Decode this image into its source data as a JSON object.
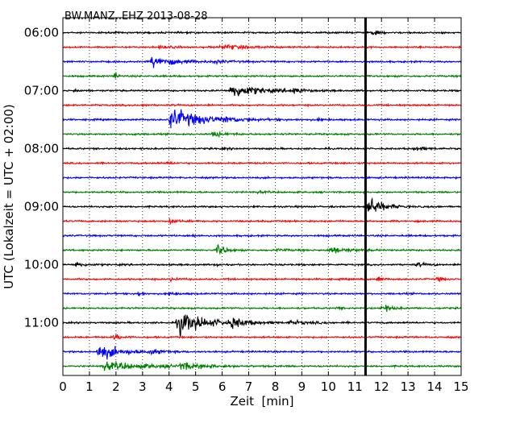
{
  "chart_data": {
    "type": "line",
    "title": "BW.MANZ..EHZ 2013-08-28",
    "xlabel": "Zeit  [min]",
    "ylabel": "UTC (Lokalzeit = UTC + 02:00)",
    "xlim": [
      0,
      15
    ],
    "x_ticks": [
      0,
      1,
      2,
      3,
      4,
      5,
      6,
      7,
      8,
      9,
      10,
      11,
      12,
      13,
      14,
      15
    ],
    "y_ticks": [
      "06:00",
      "07:00",
      "08:00",
      "09:00",
      "10:00",
      "11:00"
    ],
    "grid": "vertical dotted",
    "trace_colors": [
      "#000000",
      "#ff0000",
      "#0000ff",
      "#008000"
    ],
    "current_time_marker_min": 11.4,
    "traces": [
      {
        "start": "06:00",
        "events": [
          {
            "t": 11.6,
            "amp": 0.28,
            "dur": 0.5
          }
        ]
      },
      {
        "start": "06:15",
        "events": [
          {
            "t": 5.9,
            "amp": 0.35,
            "dur": 1.4
          },
          {
            "t": 3.6,
            "amp": 0.15,
            "dur": 1.0
          }
        ]
      },
      {
        "start": "06:30",
        "events": [
          {
            "t": 3.3,
            "amp": 0.65,
            "dur": 1.8
          },
          {
            "t": 5.6,
            "amp": 0.15,
            "dur": 1.0
          }
        ]
      },
      {
        "start": "06:45",
        "events": [
          {
            "t": 1.95,
            "amp": 0.75,
            "dur": 0.2
          }
        ]
      },
      {
        "start": "07:00",
        "events": [
          {
            "t": 0.45,
            "amp": 0.4,
            "dur": 0.15
          },
          {
            "t": 6.3,
            "amp": 0.9,
            "dur": 1.9
          },
          {
            "t": 8.6,
            "amp": 0.4,
            "dur": 0.7
          }
        ]
      },
      {
        "start": "07:15",
        "events": [
          {
            "t": 2.95,
            "amp": 0.6,
            "dur": 0.15
          }
        ]
      },
      {
        "start": "07:30",
        "events": [
          {
            "t": 4.0,
            "amp": 1.3,
            "dur": 2.4
          },
          {
            "t": 6.0,
            "amp": 0.25,
            "dur": 0.9
          },
          {
            "t": 9.6,
            "amp": 0.15,
            "dur": 0.4
          }
        ]
      },
      {
        "start": "07:45",
        "events": [
          {
            "t": 2.6,
            "amp": 0.15,
            "dur": 0.4
          },
          {
            "t": 5.6,
            "amp": 0.3,
            "dur": 1.0
          }
        ]
      },
      {
        "start": "08:00",
        "events": [
          {
            "t": 13.2,
            "amp": 0.2,
            "dur": 0.8
          },
          {
            "t": 6.0,
            "amp": 0.1,
            "dur": 0.5
          }
        ]
      },
      {
        "start": "08:15",
        "events": [
          {
            "t": 3.9,
            "amp": 0.15,
            "dur": 0.5
          }
        ]
      },
      {
        "start": "08:30",
        "events": []
      },
      {
        "start": "08:45",
        "events": [
          {
            "t": 7.3,
            "amp": 0.1,
            "dur": 0.6
          }
        ]
      },
      {
        "start": "09:00",
        "events": [
          {
            "t": 11.45,
            "amp": 1.6,
            "dur": 0.9
          }
        ]
      },
      {
        "start": "09:15",
        "events": [
          {
            "t": 4.0,
            "amp": 0.3,
            "dur": 0.6
          }
        ]
      },
      {
        "start": "09:30",
        "events": [
          {
            "t": 4.9,
            "amp": 0.2,
            "dur": 0.3
          }
        ]
      },
      {
        "start": "09:45",
        "events": [
          {
            "t": 5.8,
            "amp": 0.9,
            "dur": 0.5
          },
          {
            "t": 10.0,
            "amp": 0.35,
            "dur": 1.5
          },
          {
            "t": 8.0,
            "amp": 0.15,
            "dur": 1.0
          }
        ]
      },
      {
        "start": "10:00",
        "events": [
          {
            "t": 0.45,
            "amp": 0.35,
            "dur": 0.6
          },
          {
            "t": 13.3,
            "amp": 0.25,
            "dur": 0.6
          },
          {
            "t": 5.7,
            "amp": 0.3,
            "dur": 0.2
          }
        ]
      },
      {
        "start": "10:15",
        "events": [
          {
            "t": 11.85,
            "amp": 0.55,
            "dur": 0.25
          },
          {
            "t": 14.1,
            "amp": 0.4,
            "dur": 0.3
          },
          {
            "t": 4.0,
            "amp": 0.2,
            "dur": 0.6
          }
        ]
      },
      {
        "start": "10:30",
        "events": [
          {
            "t": 2.85,
            "amp": 1.0,
            "dur": 0.15
          },
          {
            "t": 4.0,
            "amp": 0.2,
            "dur": 0.6
          }
        ]
      },
      {
        "start": "10:45",
        "events": [
          {
            "t": 12.0,
            "amp": 0.5,
            "dur": 0.6
          },
          {
            "t": 10.3,
            "amp": 0.15,
            "dur": 0.4
          }
        ]
      },
      {
        "start": "11:00",
        "events": [
          {
            "t": 4.3,
            "amp": 1.4,
            "dur": 2.0
          },
          {
            "t": 6.3,
            "amp": 0.6,
            "dur": 1.0
          },
          {
            "t": 8.5,
            "amp": 0.2,
            "dur": 1.6
          }
        ]
      },
      {
        "start": "11:15",
        "events": [
          {
            "t": 1.9,
            "amp": 0.35,
            "dur": 0.6
          }
        ]
      },
      {
        "start": "11:30",
        "events": [
          {
            "t": 1.3,
            "amp": 0.9,
            "dur": 1.8
          },
          {
            "t": 3.3,
            "amp": 0.25,
            "dur": 0.8
          }
        ]
      },
      {
        "start": "11:45",
        "events": [
          {
            "t": 1.5,
            "amp": 0.45,
            "dur": 3.8
          },
          {
            "t": 4.4,
            "amp": 0.4,
            "dur": 1.4
          }
        ]
      }
    ]
  }
}
